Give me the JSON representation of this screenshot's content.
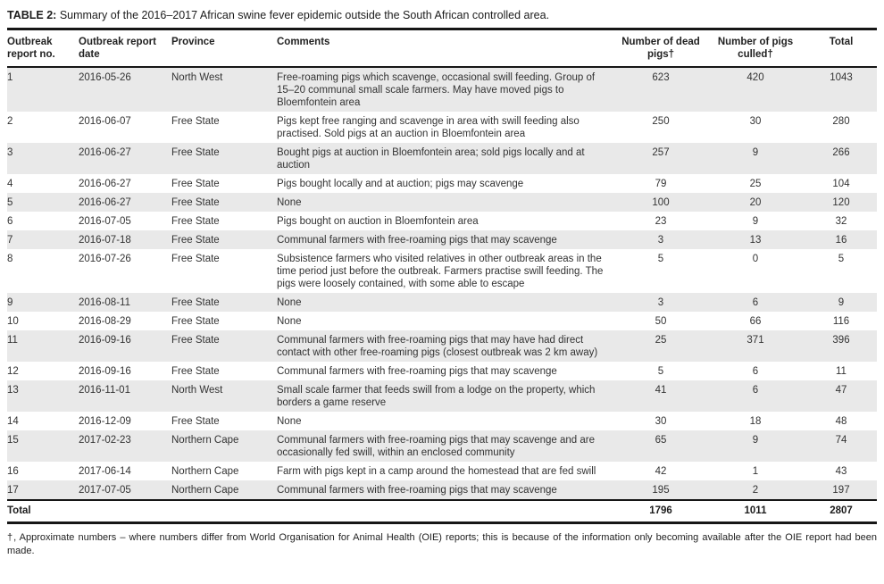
{
  "title": {
    "label": "TABLE 2:",
    "text": "Summary of the 2016–2017 African swine fever epidemic outside the South African controlled area."
  },
  "table": {
    "columns": [
      {
        "label": "Outbreak report no."
      },
      {
        "label": "Outbreak report date"
      },
      {
        "label": "Province"
      },
      {
        "label": "Comments"
      },
      {
        "label": "Number of dead pigs†"
      },
      {
        "label": "Number of pigs culled†"
      },
      {
        "label": "Total"
      }
    ],
    "rows": [
      {
        "no": "1",
        "date": "2016-05-26",
        "province": "North West",
        "comments": "Free-roaming pigs which scavenge, occasional swill feeding. Group of 15–20 communal small scale farmers. May have moved pigs to Bloemfontein area",
        "dead": "623",
        "culled": "420",
        "total": "1043"
      },
      {
        "no": "2",
        "date": "2016-06-07",
        "province": "Free State",
        "comments": "Pigs kept free ranging and scavenge in area with swill feeding also practised. Sold pigs at an auction in Bloemfontein area",
        "dead": "250",
        "culled": "30",
        "total": "280"
      },
      {
        "no": "3",
        "date": "2016-06-27",
        "province": "Free State",
        "comments": "Bought pigs at auction in Bloemfontein area; sold pigs locally and at auction",
        "dead": "257",
        "culled": "9",
        "total": "266"
      },
      {
        "no": "4",
        "date": "2016-06-27",
        "province": "Free State",
        "comments": "Pigs bought locally and at auction; pigs may scavenge",
        "dead": "79",
        "culled": "25",
        "total": "104"
      },
      {
        "no": "5",
        "date": "2016-06-27",
        "province": "Free State",
        "comments": "None",
        "dead": "100",
        "culled": "20",
        "total": "120"
      },
      {
        "no": "6",
        "date": "2016-07-05",
        "province": "Free State",
        "comments": "Pigs bought on auction in Bloemfontein area",
        "dead": "23",
        "culled": "9",
        "total": "32"
      },
      {
        "no": "7",
        "date": "2016-07-18",
        "province": "Free State",
        "comments": "Communal farmers with free-roaming pigs that may scavenge",
        "dead": "3",
        "culled": "13",
        "total": "16"
      },
      {
        "no": "8",
        "date": "2016-07-26",
        "province": "Free State",
        "comments": "Subsistence farmers who visited relatives in other outbreak areas in the time period just before the outbreak. Farmers practise swill feeding. The pigs were loosely contained, with some able to escape",
        "dead": "5",
        "culled": "0",
        "total": "5"
      },
      {
        "no": "9",
        "date": "2016-08-11",
        "province": "Free State",
        "comments": "None",
        "dead": "3",
        "culled": "6",
        "total": "9"
      },
      {
        "no": "10",
        "date": "2016-08-29",
        "province": "Free State",
        "comments": "None",
        "dead": "50",
        "culled": "66",
        "total": "116"
      },
      {
        "no": "11",
        "date": "2016-09-16",
        "province": "Free State",
        "comments": "Communal farmers with free-roaming pigs that may have had direct contact with other free-roaming pigs (closest outbreak was 2 km away)",
        "dead": "25",
        "culled": "371",
        "total": "396"
      },
      {
        "no": "12",
        "date": "2016-09-16",
        "province": "Free State",
        "comments": "Communal farmers with free-roaming pigs that may scavenge",
        "dead": "5",
        "culled": "6",
        "total": "11"
      },
      {
        "no": "13",
        "date": "2016-11-01",
        "province": "North West",
        "comments": "Small scale farmer that feeds swill from a lodge on the property, which borders a game reserve",
        "dead": "41",
        "culled": "6",
        "total": "47"
      },
      {
        "no": "14",
        "date": "2016-12-09",
        "province": "Free State",
        "comments": "None",
        "dead": "30",
        "culled": "18",
        "total": "48"
      },
      {
        "no": "15",
        "date": "2017-02-23",
        "province": "Northern Cape",
        "comments": "Communal farmers with free-roaming pigs that may scavenge and are occasionally fed swill, within an enclosed community",
        "dead": "65",
        "culled": "9",
        "total": "74"
      },
      {
        "no": "16",
        "date": "2017-06-14",
        "province": "Northern Cape",
        "comments": "Farm with pigs kept in a camp around the homestead that are fed swill",
        "dead": "42",
        "culled": "1",
        "total": "43"
      },
      {
        "no": "17",
        "date": "2017-07-05",
        "province": "Northern Cape",
        "comments": "Communal farmers with free-roaming pigs that may scavenge",
        "dead": "195",
        "culled": "2",
        "total": "197"
      }
    ],
    "totals": {
      "label": "Total",
      "dead": "1796",
      "culled": "1011",
      "total": "2807"
    }
  },
  "footnote": "†, Approximate numbers – where numbers differ from World Organisation for Animal Health (OIE) reports; this is because of the information only becoming available after the OIE report had been made.",
  "colors": {
    "stripe": "#e9e9e9",
    "rule": "#161616",
    "text": "#333333"
  }
}
